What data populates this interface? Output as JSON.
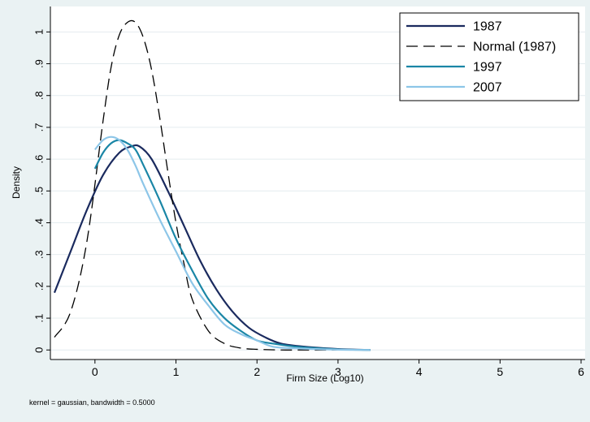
{
  "chart_data": {
    "type": "line",
    "title": "",
    "xlabel": "Firm Size (Log10)",
    "ylabel": "Density",
    "note": "kernel = gaussian, bandwidth = 0.5000",
    "xlim": [
      -0.55,
      6.05
    ],
    "ylim": [
      -0.03,
      1.08
    ],
    "xticks": [
      0,
      1,
      2,
      3,
      4,
      5,
      6
    ],
    "xtick_labels": [
      "0",
      "1",
      "2",
      "3",
      "4",
      "5",
      "6"
    ],
    "yticks": [
      0,
      0.1,
      0.2,
      0.3,
      0.4,
      0.5,
      0.6,
      0.7,
      0.8,
      0.9,
      1.0
    ],
    "ytick_labels": [
      "0",
      ".1",
      ".2",
      ".3",
      ".4",
      ".5",
      ".6",
      ".7",
      ".8",
      ".9",
      "1"
    ],
    "grid": "horizontal",
    "legend_position": "top-right",
    "series": [
      {
        "name": "1987",
        "color": "#1a2a5e",
        "dash": "solid",
        "x": [
          -0.5,
          -0.3,
          -0.1,
          0.1,
          0.3,
          0.45,
          0.55,
          0.7,
          0.9,
          1.1,
          1.3,
          1.5,
          1.7,
          1.9,
          2.1,
          2.3,
          2.6,
          3.0,
          3.4
        ],
        "y": [
          0.18,
          0.31,
          0.44,
          0.55,
          0.62,
          0.64,
          0.64,
          0.6,
          0.5,
          0.39,
          0.28,
          0.19,
          0.12,
          0.07,
          0.04,
          0.02,
          0.01,
          0.003,
          0.0
        ]
      },
      {
        "name": "Normal (1987)",
        "color": "#000000",
        "dash": "long-dash",
        "x": [
          -0.5,
          -0.3,
          -0.1,
          0.1,
          0.2,
          0.3,
          0.4,
          0.5,
          0.6,
          0.7,
          0.8,
          0.9,
          1.0,
          1.1,
          1.2,
          1.4,
          1.6,
          1.8,
          2.0,
          2.3,
          2.7,
          3.4
        ],
        "y": [
          0.04,
          0.12,
          0.34,
          0.72,
          0.89,
          0.99,
          1.03,
          1.03,
          0.98,
          0.88,
          0.73,
          0.56,
          0.4,
          0.27,
          0.16,
          0.06,
          0.02,
          0.006,
          0.002,
          0.0,
          0.0,
          0.0
        ]
      },
      {
        "name": "1997",
        "color": "#1a86a6",
        "dash": "solid",
        "x": [
          0.0,
          0.1,
          0.2,
          0.3,
          0.4,
          0.5,
          0.6,
          0.8,
          1.0,
          1.2,
          1.4,
          1.6,
          1.8,
          2.0,
          2.2,
          2.5,
          3.0,
          3.4
        ],
        "y": [
          0.57,
          0.62,
          0.65,
          0.66,
          0.65,
          0.63,
          0.58,
          0.47,
          0.35,
          0.25,
          0.16,
          0.1,
          0.06,
          0.03,
          0.02,
          0.01,
          0.002,
          0.0
        ]
      },
      {
        "name": "2007",
        "color": "#8dc6e8",
        "dash": "solid",
        "x": [
          0.0,
          0.1,
          0.2,
          0.3,
          0.4,
          0.5,
          0.6,
          0.8,
          1.0,
          1.2,
          1.4,
          1.6,
          1.8,
          2.0,
          2.2,
          2.5,
          3.0,
          3.4
        ],
        "y": [
          0.63,
          0.66,
          0.67,
          0.66,
          0.63,
          0.58,
          0.52,
          0.41,
          0.31,
          0.21,
          0.14,
          0.08,
          0.05,
          0.03,
          0.01,
          0.005,
          0.001,
          0.0
        ]
      }
    ]
  }
}
